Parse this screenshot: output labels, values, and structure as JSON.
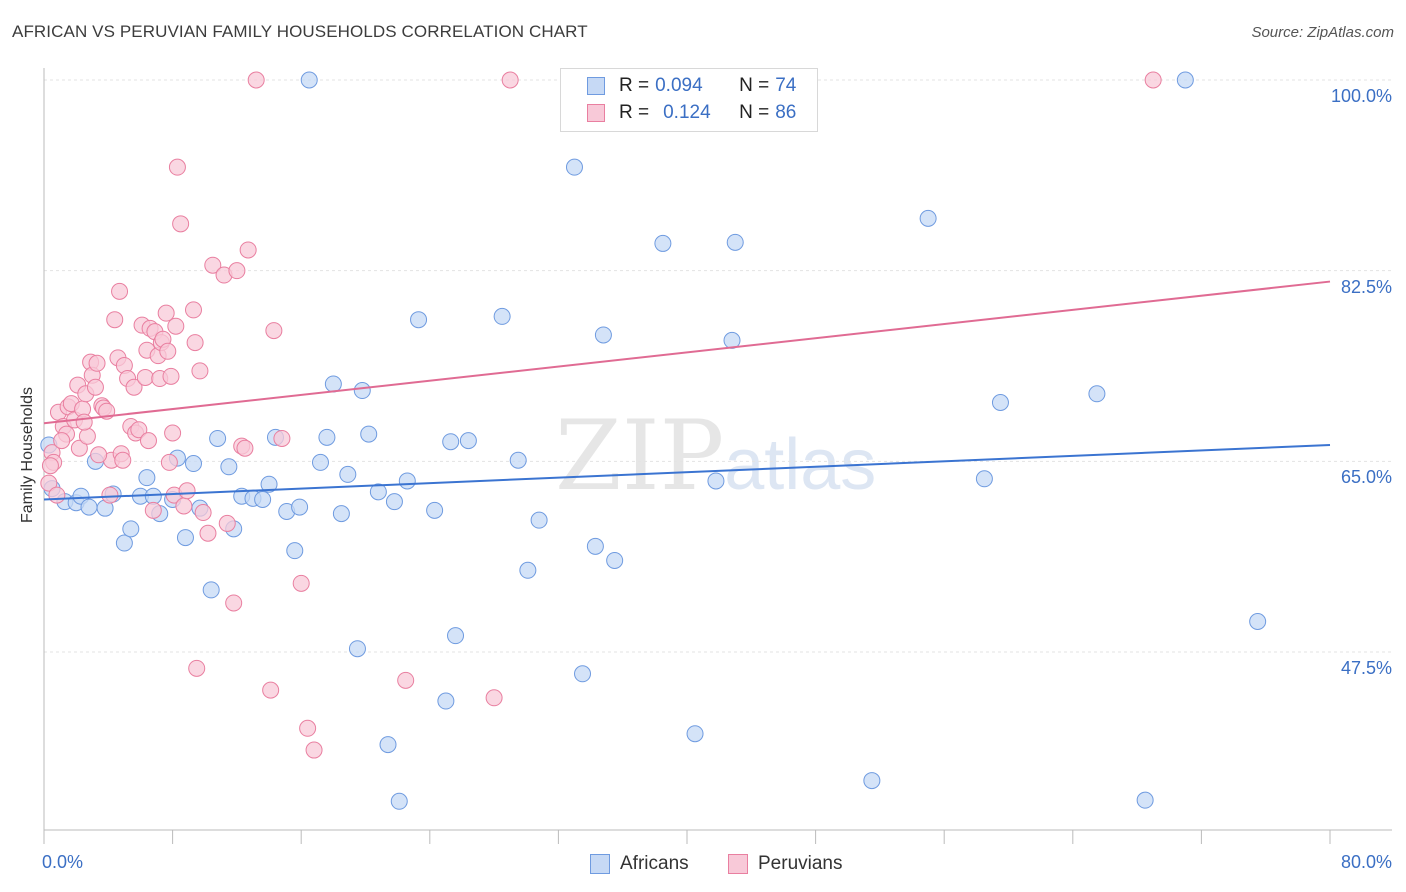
{
  "title": "AFRICAN VS PERUVIAN FAMILY HOUSEHOLDS CORRELATION CHART",
  "source": "Source: ZipAtlas.com",
  "watermark": {
    "zip": "ZIP",
    "atlas": "atlas"
  },
  "legend": {
    "rows": [
      {
        "r_label": "R =",
        "r_value": "0.094",
        "n_label": "N =",
        "n_value": "74",
        "color": "#6f9be0",
        "fill": "#c6d9f5"
      },
      {
        "r_label": "R =",
        "r_value": "0.124",
        "n_label": "N =",
        "n_value": "86",
        "color": "#e97fa0",
        "fill": "#f8c9d8"
      }
    ]
  },
  "bottom_legend": [
    {
      "label": "Africans",
      "color": "#6f9be0",
      "fill": "#c6d9f5"
    },
    {
      "label": "Peruvians",
      "color": "#e97fa0",
      "fill": "#f8c9d8"
    }
  ],
  "chart_data": {
    "type": "scatter",
    "title": "AFRICAN VS PERUVIAN FAMILY HOUSEHOLDS CORRELATION CHART",
    "xlabel": "",
    "ylabel": "Family Households",
    "xlim": [
      0,
      80
    ],
    "ylim": [
      33,
      101.5
    ],
    "x_tick_labels": {
      "left": "0.0%",
      "right": "80.0%"
    },
    "y_ticks": [
      {
        "value": 100,
        "label": "100.0%"
      },
      {
        "value": 82.5,
        "label": "82.5%"
      },
      {
        "value": 65,
        "label": "65.0%"
      },
      {
        "value": 47.5,
        "label": "47.5%"
      }
    ],
    "grid": true,
    "series": [
      {
        "name": "Africans",
        "color": "#3b74d1",
        "fill": "#c6d9f5",
        "stroke": "#6f9be0",
        "trend": {
          "x": [
            0,
            80
          ],
          "y": [
            61.5,
            66.5
          ]
        },
        "points": [
          [
            0.3,
            66.5
          ],
          [
            0.5,
            62.5
          ],
          [
            1.3,
            61.3
          ],
          [
            2.0,
            61.2
          ],
          [
            2.3,
            61.8
          ],
          [
            2.8,
            60.8
          ],
          [
            3.2,
            65.0
          ],
          [
            3.8,
            60.7
          ],
          [
            4.3,
            62.0
          ],
          [
            5.0,
            57.5
          ],
          [
            5.4,
            58.8
          ],
          [
            6.0,
            61.8
          ],
          [
            6.4,
            63.5
          ],
          [
            6.8,
            61.8
          ],
          [
            7.2,
            60.2
          ],
          [
            8.0,
            61.5
          ],
          [
            8.3,
            65.3
          ],
          [
            8.8,
            58.0
          ],
          [
            9.3,
            64.8
          ],
          [
            9.7,
            60.7
          ],
          [
            10.4,
            53.2
          ],
          [
            10.8,
            67.1
          ],
          [
            11.5,
            64.5
          ],
          [
            11.8,
            58.8
          ],
          [
            12.3,
            61.8
          ],
          [
            13.0,
            61.6
          ],
          [
            13.6,
            61.5
          ],
          [
            14.0,
            62.9
          ],
          [
            14.4,
            67.2
          ],
          [
            15.1,
            60.4
          ],
          [
            15.6,
            56.8
          ],
          [
            15.9,
            60.8
          ],
          [
            16.5,
            100.0
          ],
          [
            17.2,
            64.9
          ],
          [
            17.6,
            67.2
          ],
          [
            18.0,
            72.1
          ],
          [
            18.5,
            60.2
          ],
          [
            18.9,
            63.8
          ],
          [
            19.5,
            47.8
          ],
          [
            19.8,
            71.5
          ],
          [
            20.2,
            67.5
          ],
          [
            20.8,
            62.2
          ],
          [
            21.4,
            39.0
          ],
          [
            21.8,
            61.3
          ],
          [
            22.1,
            33.8
          ],
          [
            22.6,
            63.2
          ],
          [
            23.3,
            78.0
          ],
          [
            24.3,
            60.5
          ],
          [
            25.0,
            43.0
          ],
          [
            25.3,
            66.8
          ],
          [
            25.6,
            49.0
          ],
          [
            26.4,
            66.9
          ],
          [
            28.5,
            78.3
          ],
          [
            29.5,
            65.1
          ],
          [
            30.1,
            55.0
          ],
          [
            30.8,
            59.6
          ],
          [
            33.0,
            92.0
          ],
          [
            33.5,
            45.5
          ],
          [
            34.3,
            57.2
          ],
          [
            34.8,
            76.6
          ],
          [
            35.5,
            55.9
          ],
          [
            38.5,
            85.0
          ],
          [
            40.5,
            40.0
          ],
          [
            41.8,
            63.2
          ],
          [
            42.8,
            76.1
          ],
          [
            43.0,
            85.1
          ],
          [
            51.5,
            35.7
          ],
          [
            55.0,
            87.3
          ],
          [
            58.5,
            63.4
          ],
          [
            59.5,
            70.4
          ],
          [
            65.5,
            71.2
          ],
          [
            68.5,
            33.9
          ],
          [
            71.0,
            100.0
          ],
          [
            75.5,
            50.3
          ]
        ]
      },
      {
        "name": "Peruvians",
        "color": "#e06b93",
        "fill": "#f8c9d8",
        "stroke": "#e97fa0",
        "trend": {
          "x": [
            0,
            80
          ],
          "y": [
            68.5,
            81.5
          ]
        },
        "points": [
          [
            0.3,
            63.0
          ],
          [
            0.5,
            65.8
          ],
          [
            0.6,
            64.9
          ],
          [
            0.9,
            69.5
          ],
          [
            1.2,
            68.2
          ],
          [
            1.4,
            67.5
          ],
          [
            1.5,
            70.0
          ],
          [
            1.7,
            70.3
          ],
          [
            1.9,
            68.8
          ],
          [
            2.1,
            72.0
          ],
          [
            2.2,
            66.2
          ],
          [
            2.4,
            69.8
          ],
          [
            2.6,
            71.2
          ],
          [
            2.7,
            67.3
          ],
          [
            2.9,
            74.1
          ],
          [
            3.0,
            72.9
          ],
          [
            3.2,
            71.8
          ],
          [
            3.3,
            74.0
          ],
          [
            3.6,
            70.1
          ],
          [
            3.7,
            69.9
          ],
          [
            3.9,
            69.6
          ],
          [
            4.1,
            61.9
          ],
          [
            4.2,
            65.1
          ],
          [
            4.4,
            78.0
          ],
          [
            4.6,
            74.5
          ],
          [
            4.7,
            80.6
          ],
          [
            4.8,
            65.7
          ],
          [
            4.9,
            65.1
          ],
          [
            5.0,
            73.8
          ],
          [
            5.2,
            72.6
          ],
          [
            5.4,
            68.2
          ],
          [
            5.6,
            71.8
          ],
          [
            5.7,
            67.6
          ],
          [
            5.9,
            67.9
          ],
          [
            6.1,
            77.5
          ],
          [
            6.3,
            72.7
          ],
          [
            6.4,
            75.2
          ],
          [
            6.6,
            77.2
          ],
          [
            6.8,
            60.5
          ],
          [
            6.9,
            76.9
          ],
          [
            7.1,
            74.7
          ],
          [
            7.2,
            72.6
          ],
          [
            7.3,
            75.9
          ],
          [
            7.4,
            76.2
          ],
          [
            7.6,
            78.6
          ],
          [
            7.7,
            75.1
          ],
          [
            7.9,
            72.8
          ],
          [
            8.0,
            67.6
          ],
          [
            8.1,
            61.9
          ],
          [
            8.2,
            77.4
          ],
          [
            8.3,
            92.0
          ],
          [
            8.5,
            86.8
          ],
          [
            8.7,
            60.9
          ],
          [
            8.9,
            62.3
          ],
          [
            9.3,
            78.9
          ],
          [
            9.4,
            75.9
          ],
          [
            9.5,
            46.0
          ],
          [
            9.7,
            73.3
          ],
          [
            9.9,
            60.3
          ],
          [
            10.2,
            58.4
          ],
          [
            10.5,
            83.0
          ],
          [
            11.2,
            82.1
          ],
          [
            11.4,
            59.3
          ],
          [
            11.8,
            52.0
          ],
          [
            12.0,
            82.5
          ],
          [
            12.3,
            66.4
          ],
          [
            12.5,
            66.2
          ],
          [
            12.7,
            84.4
          ],
          [
            13.2,
            100.0
          ],
          [
            14.1,
            44.0
          ],
          [
            14.3,
            77.0
          ],
          [
            14.8,
            67.1
          ],
          [
            16.0,
            53.8
          ],
          [
            16.4,
            40.5
          ],
          [
            16.8,
            38.5
          ],
          [
            22.5,
            44.9
          ],
          [
            28.0,
            43.3
          ],
          [
            29.0,
            100.0
          ],
          [
            69.0,
            100.0
          ],
          [
            0.8,
            61.9
          ],
          [
            1.1,
            66.9
          ],
          [
            2.5,
            68.6
          ],
          [
            3.4,
            65.6
          ],
          [
            6.5,
            66.9
          ],
          [
            7.8,
            64.9
          ],
          [
            0.4,
            64.6
          ]
        ]
      }
    ]
  }
}
